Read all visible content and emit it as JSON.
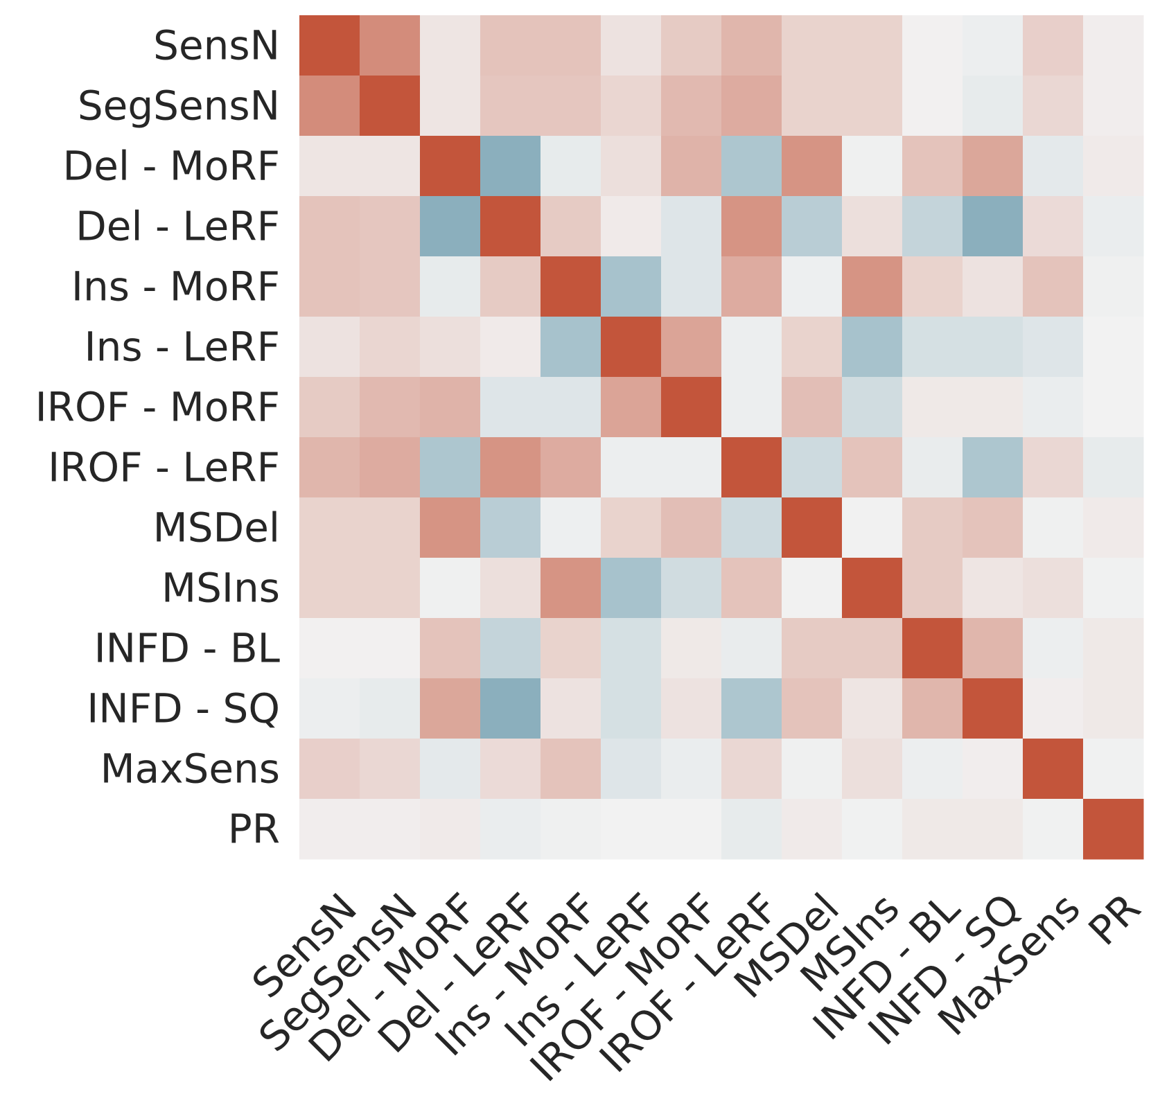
{
  "chart_data": {
    "type": "heatmap",
    "title": "",
    "xlabel": "",
    "ylabel": "",
    "row_labels": [
      "SensN",
      "SegSensN",
      "Del - MoRF",
      "Del - LeRF",
      "Ins - MoRF",
      "Ins - LeRF",
      "IROF - MoRF",
      "IROF - LeRF",
      "MSDel",
      "MSIns",
      "INFD - BL",
      "INFD - SQ",
      "MaxSens",
      "PR"
    ],
    "col_labels": [
      "SensN",
      "SegSensN",
      "Del - MoRF",
      "Del - LeRF",
      "Ins - MoRF",
      "Ins - LeRF",
      "IROF - MoRF",
      "IROF - LeRF",
      "MSDel",
      "MSIns",
      "INFD - BL",
      "INFD - SQ",
      "MaxSens",
      "PR"
    ],
    "value_range": [
      -1,
      1
    ],
    "colormap": {
      "negative": "#7fa8b7",
      "neutral": "#f2f2f2",
      "positive": "#c3553b"
    },
    "values": [
      [
        1.0,
        0.65,
        0.08,
        0.3,
        0.3,
        0.1,
        0.25,
        0.38,
        0.2,
        0.2,
        0.01,
        -0.05,
        0.22,
        0.03
      ],
      [
        0.65,
        1.0,
        0.08,
        0.28,
        0.28,
        0.18,
        0.36,
        0.45,
        0.2,
        0.2,
        0.01,
        -0.1,
        0.17,
        0.03
      ],
      [
        0.08,
        0.08,
        1.0,
        -0.9,
        -0.1,
        0.12,
        0.4,
        -0.6,
        0.6,
        -0.03,
        0.3,
        0.48,
        -0.12,
        0.05
      ],
      [
        0.3,
        0.28,
        -0.9,
        1.0,
        0.25,
        0.05,
        -0.17,
        0.6,
        -0.5,
        0.12,
        -0.4,
        -0.9,
        0.15,
        -0.07
      ],
      [
        0.3,
        0.28,
        -0.1,
        0.25,
        1.0,
        -0.65,
        -0.17,
        0.45,
        -0.04,
        0.6,
        0.2,
        0.1,
        0.3,
        -0.03
      ],
      [
        0.1,
        0.18,
        0.12,
        0.05,
        -0.65,
        1.0,
        0.5,
        -0.05,
        0.2,
        -0.65,
        -0.25,
        -0.25,
        -0.17,
        0.0
      ],
      [
        0.25,
        0.36,
        0.4,
        -0.17,
        -0.17,
        0.5,
        1.0,
        -0.05,
        0.33,
        -0.3,
        0.06,
        0.06,
        -0.07,
        0.0
      ],
      [
        0.38,
        0.45,
        -0.6,
        0.6,
        0.45,
        -0.05,
        -0.05,
        1.0,
        -0.32,
        0.3,
        -0.08,
        -0.6,
        0.17,
        -0.1
      ],
      [
        0.2,
        0.2,
        0.6,
        -0.5,
        -0.04,
        0.2,
        0.33,
        -0.32,
        1.0,
        -0.01,
        0.25,
        0.3,
        -0.03,
        0.05
      ],
      [
        0.2,
        0.2,
        -0.03,
        0.12,
        0.6,
        -0.65,
        -0.3,
        0.3,
        -0.01,
        1.0,
        0.25,
        0.08,
        0.12,
        -0.02
      ],
      [
        0.01,
        0.01,
        0.3,
        -0.4,
        0.2,
        -0.25,
        0.06,
        -0.08,
        0.25,
        0.25,
        1.0,
        0.38,
        -0.05,
        0.06
      ],
      [
        -0.05,
        -0.1,
        0.48,
        -0.9,
        0.1,
        -0.25,
        0.1,
        -0.6,
        0.3,
        0.08,
        0.38,
        1.0,
        0.03,
        0.06
      ],
      [
        0.22,
        0.17,
        -0.12,
        0.15,
        0.3,
        -0.17,
        -0.07,
        0.17,
        -0.03,
        0.12,
        -0.05,
        0.03,
        1.0,
        -0.02
      ],
      [
        0.03,
        0.03,
        0.05,
        -0.07,
        -0.03,
        0.0,
        0.0,
        -0.1,
        0.05,
        -0.02,
        0.06,
        0.06,
        -0.02,
        1.0
      ]
    ]
  }
}
